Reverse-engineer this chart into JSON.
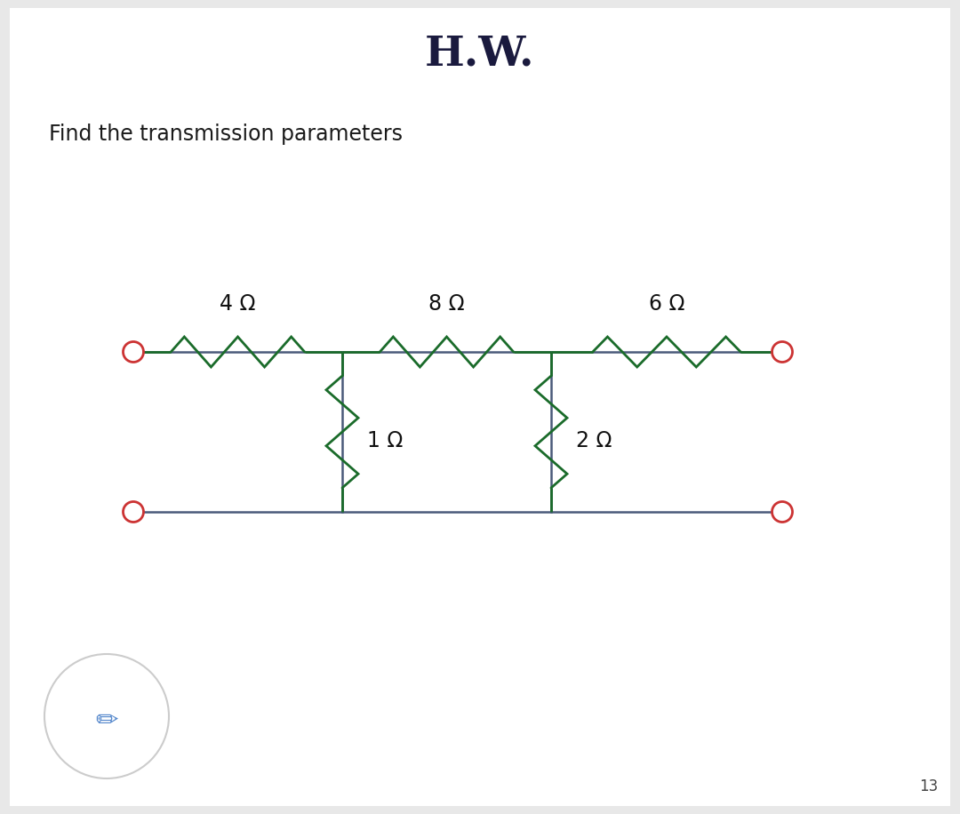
{
  "title": "H.W.",
  "subtitle": "Find the transmission parameters",
  "page_number": "13",
  "bg_color": "#e8e8e8",
  "panel_color": "#ffffff",
  "title_color": "#1a1a3e",
  "subtitle_color": "#1a1a1a",
  "wire_color": "#4a5a7a",
  "resistor_color": "#1a6b2a",
  "terminal_color": "#cc3333",
  "resistor_labels": [
    "4 Ω",
    "8 Ω",
    "6 Ω",
    "1 Ω",
    "2 Ω"
  ],
  "label_color": "#111111",
  "page_color": "#444444"
}
